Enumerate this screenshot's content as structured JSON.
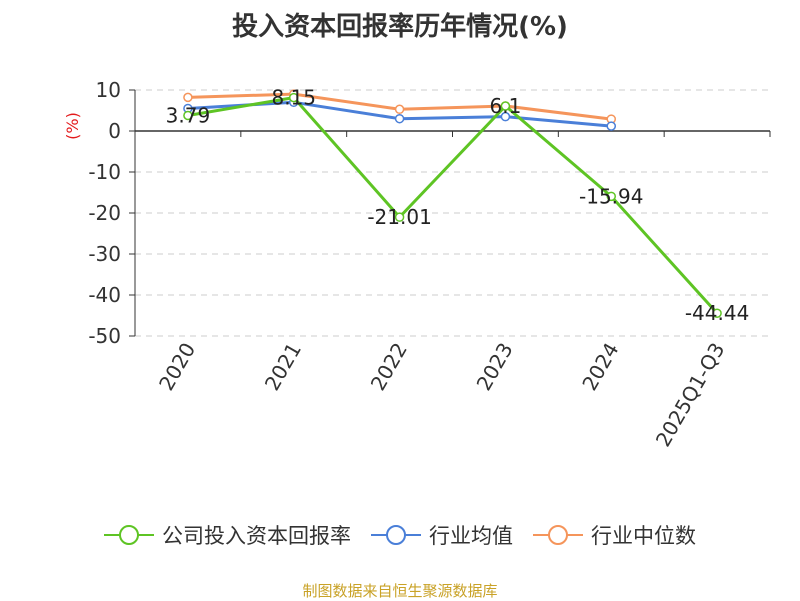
{
  "title": "投入资本回报率历年情况(%)",
  "source": "制图数据来自恒生聚源数据库",
  "colors": {
    "company": "#5ec424",
    "industry_avg": "#4a7fd8",
    "industry_median": "#f5955b",
    "grid": "#cccccc",
    "axis": "#333333",
    "unit": "#e31a1c"
  },
  "chart_data": {
    "type": "line",
    "title": "投入资本回报率历年情况(%)",
    "ylabel": "(%)",
    "xlabel": "",
    "categories": [
      "2020",
      "2021",
      "2022",
      "2023",
      "2024",
      "2025Q1-Q3"
    ],
    "ylim": [
      -50,
      10
    ],
    "yticks": [
      10,
      0,
      -10,
      -20,
      -30,
      -40,
      -50
    ],
    "grid": true,
    "legend_position": "bottom",
    "series": [
      {
        "name": "公司投入资本回报率",
        "values": [
          3.79,
          8.15,
          -21.01,
          6.1,
          -15.94,
          -44.44
        ],
        "labels": [
          "3.79",
          "8.15",
          "-21.01",
          "6.1",
          "-15.94",
          "-44.44"
        ]
      },
      {
        "name": "行业均值",
        "values": [
          5.5,
          7.0,
          3.0,
          3.5,
          1.2,
          null
        ]
      },
      {
        "name": "行业中位数",
        "values": [
          8.2,
          9.0,
          5.3,
          6.1,
          2.9,
          null
        ]
      }
    ]
  }
}
